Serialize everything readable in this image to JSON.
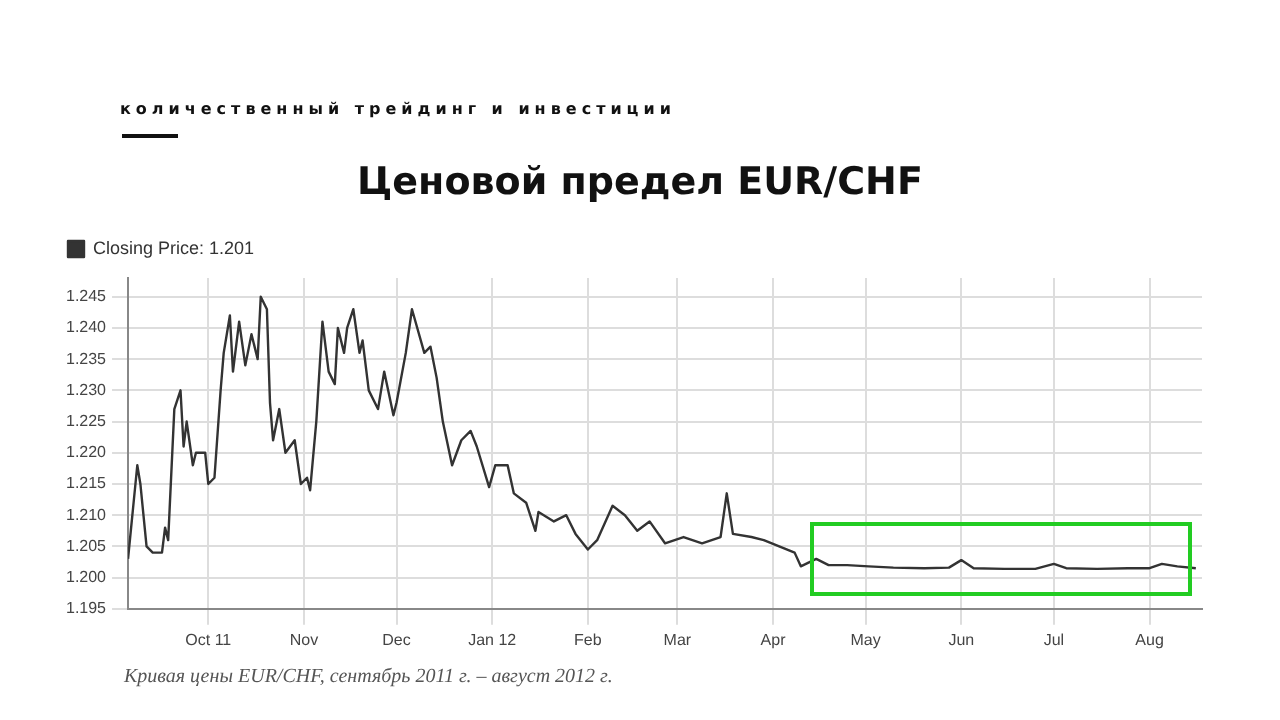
{
  "chart_data": {
    "type": "line",
    "title": "Ценовой предел EUR/CHF",
    "subtitle": "количественный трейдинг и инвестиции",
    "annotations": [
      "Кривая цены EUR/CHF, сентябрь 2011 г. – август 2012 г."
    ],
    "legend": "top left",
    "grid": true,
    "marker": "none",
    "line_style": "solid",
    "xlim": [
      "2011-09-05",
      "2012-08-18"
    ],
    "xticks": [
      {
        "value": "2011-10-01",
        "label": "Oct 11"
      },
      {
        "value": "2011-11-01",
        "label": "Nov"
      },
      {
        "value": "2011-12-01",
        "label": "Dec"
      },
      {
        "value": "2012-01-01",
        "label": "Jan 12"
      },
      {
        "value": "2012-02-01",
        "label": "Feb"
      },
      {
        "value": "2012-03-01",
        "label": "Mar"
      },
      {
        "value": "2012-04-01",
        "label": "Apr"
      },
      {
        "value": "2012-05-01",
        "label": "May"
      },
      {
        "value": "2012-06-01",
        "label": "Jun"
      },
      {
        "value": "2012-07-01",
        "label": "Jul"
      },
      {
        "value": "2012-08-01",
        "label": "Aug"
      }
    ],
    "ylim": [
      1.195,
      1.248
    ],
    "yticks": [
      1.195,
      {
        "value": 1.2,
        "label": "1.200"
      },
      1.205,
      {
        "value": 1.21,
        "label": "1.210"
      },
      1.215,
      {
        "value": 1.22,
        "label": "1.220"
      },
      1.225,
      {
        "value": 1.23,
        "label": "1.230"
      },
      1.235,
      {
        "value": 1.24,
        "label": "1.240"
      },
      1.245
    ],
    "series": [
      {
        "name": "Closing Price: 1.201",
        "color": "#333333",
        "x": [
          "2011-09-05",
          "2011-09-08",
          "2011-09-09",
          "2011-09-11",
          "2011-09-13",
          "2011-09-16",
          "2011-09-17",
          "2011-09-18",
          "2011-09-20",
          "2011-09-22",
          "2011-09-23",
          "2011-09-24",
          "2011-09-26",
          "2011-09-27",
          "2011-09-30",
          "2011-10-01",
          "2011-10-03",
          "2011-10-05",
          "2011-10-06",
          "2011-10-08",
          "2011-10-09",
          "2011-10-11",
          "2011-10-13",
          "2011-10-15",
          "2011-10-17",
          "2011-10-18",
          "2011-10-20",
          "2011-10-21",
          "2011-10-22",
          "2011-10-24",
          "2011-10-26",
          "2011-10-29",
          "2011-10-31",
          "2011-11-02",
          "2011-11-03",
          "2011-11-05",
          "2011-11-07",
          "2011-11-09",
          "2011-11-11",
          "2011-11-12",
          "2011-11-14",
          "2011-11-15",
          "2011-11-17",
          "2011-11-19",
          "2011-11-20",
          "2011-11-22",
          "2011-11-25",
          "2011-11-27",
          "2011-11-30",
          "2011-12-01",
          "2011-12-04",
          "2011-12-06",
          "2011-12-10",
          "2011-12-12",
          "2011-12-14",
          "2011-12-16",
          "2011-12-19",
          "2011-12-22",
          "2011-12-25",
          "2011-12-27",
          "2011-12-31",
          "2012-01-02",
          "2012-01-06",
          "2012-01-08",
          "2012-01-12",
          "2012-01-15",
          "2012-01-16",
          "2012-01-21",
          "2012-01-25",
          "2012-01-28",
          "2012-02-01",
          "2012-02-04",
          "2012-02-09",
          "2012-02-13",
          "2012-02-17",
          "2012-02-21",
          "2012-02-26",
          "2012-03-03",
          "2012-03-09",
          "2012-03-15",
          "2012-03-17",
          "2012-03-19",
          "2012-03-25",
          "2012-03-29",
          "2012-04-03",
          "2012-04-08",
          "2012-04-10",
          "2012-04-15",
          "2012-04-19",
          "2012-04-25",
          "2012-05-02",
          "2012-05-10",
          "2012-05-20",
          "2012-05-28",
          "2012-06-01",
          "2012-06-05",
          "2012-06-15",
          "2012-06-25",
          "2012-07-01",
          "2012-07-05",
          "2012-07-15",
          "2012-07-25",
          "2012-08-01",
          "2012-08-05",
          "2012-08-10",
          "2012-08-16"
        ],
        "values": [
          1.203,
          1.218,
          1.215,
          1.205,
          1.204,
          1.204,
          1.208,
          1.206,
          1.227,
          1.23,
          1.221,
          1.225,
          1.218,
          1.22,
          1.22,
          1.215,
          1.216,
          1.23,
          1.236,
          1.242,
          1.233,
          1.241,
          1.234,
          1.239,
          1.235,
          1.245,
          1.243,
          1.228,
          1.222,
          1.227,
          1.22,
          1.222,
          1.215,
          1.216,
          1.214,
          1.225,
          1.241,
          1.233,
          1.231,
          1.24,
          1.236,
          1.24,
          1.243,
          1.236,
          1.238,
          1.23,
          1.227,
          1.233,
          1.226,
          1.228,
          1.236,
          1.243,
          1.236,
          1.237,
          1.232,
          1.225,
          1.218,
          1.222,
          1.2235,
          1.221,
          1.2145,
          1.218,
          1.218,
          1.2135,
          1.212,
          1.2075,
          1.2105,
          1.209,
          1.21,
          1.207,
          1.2045,
          1.206,
          1.2115,
          1.21,
          1.2075,
          1.209,
          1.2055,
          1.2065,
          1.2055,
          1.2065,
          1.2135,
          1.207,
          1.2065,
          1.206,
          1.205,
          1.204,
          1.2018,
          1.203,
          1.202,
          1.202,
          1.2018,
          1.2016,
          1.2015,
          1.2016,
          1.2028,
          1.2015,
          1.2014,
          1.2014,
          1.2022,
          1.2015,
          1.2014,
          1.2015,
          1.2015,
          1.2022,
          1.2018,
          1.2015
        ]
      }
    ]
  }
}
